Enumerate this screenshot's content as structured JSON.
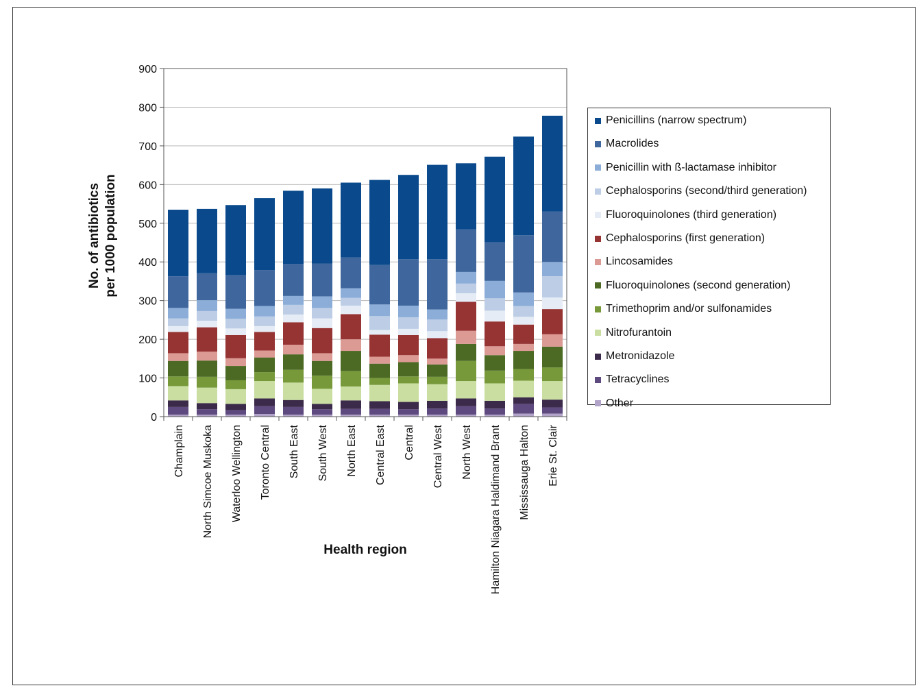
{
  "chart_data": {
    "type": "bar",
    "stacked": true,
    "xlabel": "Health region",
    "ylabel": "No. of antibiotics per 1000 population",
    "ylabel_lines": [
      "No. of antibiotics",
      "per 1000 population"
    ],
    "ylim": [
      0,
      900
    ],
    "yticks": [
      0,
      100,
      200,
      300,
      400,
      500,
      600,
      700,
      800,
      900
    ],
    "grid": true,
    "legend_position": "right",
    "categories": [
      "Champlain",
      "North Simcoe Muskoka",
      "Waterloo Wellington",
      "Toronto Central",
      "South East",
      "South West",
      "North East",
      "Central East",
      "Central",
      "Central West",
      "North West",
      "Hamilton Niagara Haldimand Brant",
      "Mississauga Halton",
      "Erie St. Clair"
    ],
    "series": [
      {
        "name": "Other",
        "color": "#b2a4c8",
        "values": [
          5,
          5,
          5,
          7,
          5,
          5,
          5,
          5,
          5,
          5,
          5,
          5,
          8,
          8
        ]
      },
      {
        "name": "Tetracyclines",
        "color": "#5e4a7e",
        "values": [
          20,
          14,
          12,
          20,
          20,
          14,
          15,
          15,
          14,
          16,
          22,
          16,
          25,
          16
        ]
      },
      {
        "name": "Metronidazole",
        "color": "#3c2a4a",
        "values": [
          17,
          16,
          16,
          20,
          18,
          14,
          22,
          20,
          19,
          20,
          20,
          20,
          17,
          20
        ]
      },
      {
        "name": "Nitrofurantoin",
        "color": "#c9dea0",
        "values": [
          37,
          40,
          38,
          45,
          45,
          39,
          36,
          42,
          48,
          43,
          45,
          45,
          43,
          48
        ]
      },
      {
        "name": "Trimethoprim and/or sulfonamides",
        "color": "#77993a",
        "values": [
          25,
          28,
          23,
          23,
          33,
          34,
          40,
          18,
          18,
          19,
          52,
          33,
          30,
          35
        ]
      },
      {
        "name": "Fluoroquinolones (second generation)",
        "color": "#4c6a24",
        "values": [
          40,
          42,
          37,
          38,
          40,
          38,
          52,
          37,
          37,
          32,
          44,
          40,
          47,
          54
        ]
      },
      {
        "name": "Lincosamides",
        "color": "#dc9a95",
        "values": [
          20,
          23,
          20,
          18,
          25,
          20,
          30,
          18,
          18,
          15,
          34,
          23,
          18,
          32
        ]
      },
      {
        "name": "Cephalosporins (first generation)",
        "color": "#963333",
        "values": [
          55,
          63,
          60,
          48,
          58,
          65,
          65,
          57,
          52,
          53,
          75,
          64,
          50,
          65
        ]
      },
      {
        "name": "Fluoroquinolones (third generation)",
        "color": "#e6ecf5",
        "values": [
          15,
          17,
          17,
          15,
          20,
          25,
          22,
          12,
          16,
          18,
          22,
          28,
          20,
          30
        ]
      },
      {
        "name": "Cephalosporins (second/third generation)",
        "color": "#bccde5",
        "values": [
          20,
          25,
          25,
          25,
          25,
          27,
          20,
          36,
          30,
          30,
          25,
          32,
          28,
          55
        ]
      },
      {
        "name": "Penicillin with ß-lactamase inhibitor",
        "color": "#8badd8",
        "values": [
          27,
          28,
          26,
          27,
          23,
          30,
          25,
          30,
          30,
          26,
          30,
          45,
          35,
          37
        ]
      },
      {
        "name": "Macrolides",
        "color": "#3f679e",
        "values": [
          82,
          70,
          87,
          93,
          83,
          85,
          80,
          102,
          120,
          130,
          110,
          100,
          148,
          130
        ]
      },
      {
        "name": "Penicillins (narrow spectrum)",
        "color": "#0a4a8c",
        "values": [
          172,
          166,
          181,
          186,
          189,
          194,
          193,
          220,
          218,
          244,
          171,
          221,
          255,
          248
        ]
      }
    ],
    "legend_order": [
      "Penicillins (narrow spectrum)",
      "Macrolides",
      "Penicillin with ß-lactamase inhibitor",
      "Cephalosporins (second/third generation)",
      "Fluoroquinolones (third generation)",
      "Cephalosporins (first generation)",
      "Lincosamides",
      "Fluoroquinolones (second generation)",
      "Trimethoprim and/or sulfonamides",
      "Nitrofurantoin",
      "Metronidazole",
      "Tetracyclines",
      "Other"
    ]
  }
}
